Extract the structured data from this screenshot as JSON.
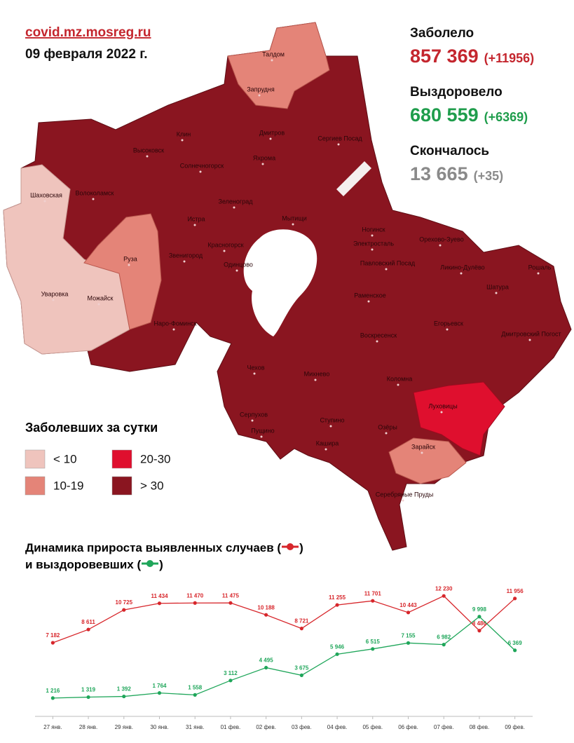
{
  "header": {
    "site": "covid.mz.mosreg.ru",
    "date": "09 февраля 2022 г."
  },
  "stats": [
    {
      "label": "Заболело",
      "value": "857 369",
      "delta": "(+11956)",
      "color": "#c4262e"
    },
    {
      "label": "Выздоровело",
      "value": "680 559",
      "delta": "(+6369)",
      "color": "#1f9d4c"
    },
    {
      "label": "Скончалось",
      "value": "13 665",
      "delta": "(+35)",
      "color": "#8a8a8a"
    }
  ],
  "legend": {
    "title": "Заболевших за сутки",
    "items": [
      {
        "label": "< 10",
        "color": "#efc4bd"
      },
      {
        "label": "10-19",
        "color": "#e48478"
      },
      {
        "label": "20-30",
        "color": "#df0f2e"
      },
      {
        "label": "> 30",
        "color": "#8a1520"
      }
    ]
  },
  "map_labels": [
    "Талдом",
    "Запрудня",
    "Клин",
    "Дмитров",
    "Сергиев Посад",
    "Высоковск",
    "Солнечногорск",
    "Яхрома",
    "Шаховская",
    "Волоколамск",
    "Зеленоград",
    "Истра",
    "Мытищи",
    "Ногинск",
    "Красногорск",
    "Электросталь",
    "Орехово-Зуево",
    "Руза",
    "Павловский Посад",
    "Ликино-Дулёво",
    "Рошаль",
    "Звенигород",
    "Одинцово",
    "Шатура",
    "Раменское",
    "Уваровка",
    "Можайск",
    "Наро-Фоминск",
    "Егорьевск",
    "Дмитровский Погост",
    "Воскресенск",
    "Чехов",
    "Михнево",
    "Коломна",
    "Серпухов",
    "Луховицы",
    "Пущино",
    "Ступино",
    "Озёры",
    "Зарайск",
    "Кашира",
    "Серебряные Пруды"
  ],
  "chart_data": {
    "type": "line",
    "title": [
      "Динамика прироста выявленных случаев (",
      ")"
    ],
    "subtitle": [
      "и выздоровевших (",
      ")"
    ],
    "categories": [
      "27 янв.",
      "28 янв.",
      "29 янв.",
      "30 янв.",
      "31 янв.",
      "01 фев.",
      "02 фев.",
      "03 фев.",
      "04 фев.",
      "05 фев.",
      "06 фев.",
      "07 фев.",
      "08 фев.",
      "09 фев."
    ],
    "ylim": [
      0,
      13000
    ],
    "series": [
      {
        "color": "#d7262b",
        "values": [
          7182,
          8611,
          10725,
          11434,
          11470,
          11475,
          10188,
          8721,
          11255,
          11701,
          10443,
          12230,
          8486,
          11956
        ],
        "value_labels": [
          "7 182",
          "8 611",
          "10 725",
          "11 434",
          "11 470",
          "11 475",
          "10 188",
          "8 721",
          "11 255",
          "11 701",
          "10 443",
          "12 230",
          "8 486",
          "11 956"
        ]
      },
      {
        "color": "#1fa65a",
        "values": [
          1216,
          1319,
          1392,
          1764,
          1558,
          3112,
          4495,
          3675,
          5946,
          6515,
          7155,
          6982,
          9998,
          6369
        ],
        "value_labels": [
          "1 216",
          "1 319",
          "1 392",
          "1 764",
          "1 558",
          "3 112",
          "4 495",
          "3 675",
          "5 946",
          "6 515",
          "7 155",
          "6 982",
          "9 998",
          "6 369"
        ]
      }
    ]
  }
}
